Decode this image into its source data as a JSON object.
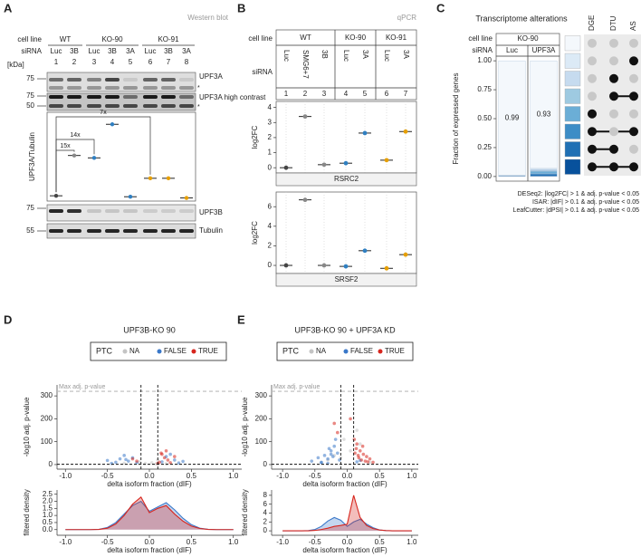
{
  "a": {
    "label": "A",
    "source": "Western blot",
    "row_labels": {
      "cell_line": "cell line",
      "sirna": "siRNA",
      "kda": "[kDa]"
    },
    "groups": [
      {
        "name": "WT",
        "lanes": [
          {
            "sirna": "Luc",
            "number": 1
          },
          {
            "sirna": "3B",
            "number": 2
          }
        ]
      },
      {
        "name": "KO-90",
        "lanes": [
          {
            "sirna": "Luc",
            "number": 3
          },
          {
            "sirna": "3B",
            "number": 4
          },
          {
            "sirna": "3A",
            "number": 5
          }
        ]
      },
      {
        "name": "KO-91",
        "lanes": [
          {
            "sirna": "Luc",
            "number": 6
          },
          {
            "sirna": "3B",
            "number": 7
          },
          {
            "sirna": "3A",
            "number": 8
          }
        ]
      }
    ],
    "blots": [
      {
        "label": "UPF3A",
        "markers": [
          75
        ],
        "note": "*"
      },
      {
        "label": "UPF3A high contrast",
        "markers": [
          75,
          50
        ],
        "note": "*"
      }
    ],
    "quant": {
      "type": "dot",
      "ylabel": "UPF3A/Tubulin",
      "values": [
        0.012,
        0.18,
        0.17,
        0.31,
        0.008,
        0.085,
        0.085,
        0.003
      ],
      "colors": [
        "#444444",
        "#888888",
        "#2f7fc1",
        "#2f7fc1",
        "#2f7fc1",
        "#e69f00",
        "#e69f00",
        "#e69f00"
      ],
      "ylim": [
        -0.01,
        0.36
      ],
      "fold_changes": [
        "15x",
        "14x",
        "7x"
      ]
    },
    "blots_lower": [
      {
        "label": "UPF3B",
        "markers": [
          75
        ]
      },
      {
        "label": "Tubulin",
        "markers": [
          55
        ]
      }
    ]
  },
  "b": {
    "label": "B",
    "source": "qPCR",
    "row_labels": {
      "cell_line": "cell line",
      "sirna": "siRNA"
    },
    "groups": [
      {
        "name": "WT",
        "lanes": [
          {
            "sirna": "Luc",
            "number": 1
          },
          {
            "sirna": "SMG6+7",
            "number": 2
          },
          {
            "sirna": "3B",
            "number": 3
          }
        ]
      },
      {
        "name": "KO-90",
        "lanes": [
          {
            "sirna": "Luc",
            "number": 4
          },
          {
            "sirna": "3A",
            "number": 5
          }
        ]
      },
      {
        "name": "KO-91",
        "lanes": [
          {
            "sirna": "Luc",
            "number": 6
          },
          {
            "sirna": "3A",
            "number": 7
          }
        ]
      }
    ],
    "ylabel": "log2FC",
    "colors": [
      "#444444",
      "#888888",
      "#888888",
      "#2f7fc1",
      "#2f7fc1",
      "#e69f00",
      "#e69f00"
    ],
    "genes": [
      {
        "type": "dot",
        "name": "RSRC2",
        "values": [
          0,
          3.4,
          0.2,
          0.3,
          2.3,
          0.5,
          2.4
        ],
        "ylim": [
          -0.35,
          4.4
        ],
        "yticks": [
          0,
          1,
          2,
          3,
          4
        ]
      },
      {
        "type": "dot",
        "name": "SRSF2",
        "values": [
          0,
          6.7,
          0,
          -0.1,
          1.5,
          -0.3,
          1.1
        ],
        "ylim": [
          -0.83,
          7.5
        ],
        "yticks": [
          0,
          2,
          4,
          6
        ]
      }
    ]
  },
  "c": {
    "type": "stacked-bar",
    "label": "C",
    "title": "Transcriptome alterations",
    "cell_line_label": "cell line",
    "cell_line": "KO-90",
    "sirna_label": "siRNA",
    "categories": [
      "Luc",
      "UPF3A"
    ],
    "ylabel": "Fraction of expressed genes",
    "ylim": [
      -0.04,
      1.04
    ],
    "yticks": [
      {
        "value": 0,
        "label": "0.00"
      },
      {
        "value": 0.25,
        "label": "0.25"
      },
      {
        "value": 0.5,
        "label": "0.50"
      },
      {
        "value": 0.75,
        "label": "0.75"
      },
      {
        "value": 1,
        "label": "1.00"
      }
    ],
    "matrix_columns": [
      "DGE",
      "DTU",
      "AS"
    ],
    "series": [
      {
        "color": "#f4f8fc",
        "values": [
          0.99,
          0.93
        ],
        "combination": [
          false,
          false,
          false
        ]
      },
      {
        "color": "#dceaf6",
        "values": [
          0.001,
          0.01
        ],
        "combination": [
          false,
          false,
          true
        ]
      },
      {
        "color": "#c6dbef",
        "values": [
          0.001,
          0.01
        ],
        "combination": [
          false,
          true,
          false
        ]
      },
      {
        "color": "#9ecae1",
        "values": [
          0.001,
          0.005
        ],
        "combination": [
          false,
          true,
          true
        ]
      },
      {
        "color": "#6baed6",
        "values": [
          0.003,
          0.02
        ],
        "combination": [
          true,
          false,
          false
        ]
      },
      {
        "color": "#3d8dc6",
        "values": [
          0.001,
          0.005
        ],
        "combination": [
          true,
          false,
          true
        ]
      },
      {
        "color": "#2070b4",
        "values": [
          0.002,
          0.015
        ],
        "combination": [
          true,
          true,
          false
        ]
      },
      {
        "color": "#08519c",
        "values": [
          0.001,
          0.005
        ],
        "combination": [
          true,
          true,
          true
        ]
      }
    ],
    "criteria": [
      "DESeq2: |log2FC| > 1 & adj. p-value < 0.05",
      "ISAR: |dIF| > 0.1 & adj. p-value < 0.05",
      "LeafCutter: |dPSI| > 0.1 & adj. p-value < 0.05"
    ]
  },
  "d": {
    "label": "D",
    "title": "UPF3B-KO 90",
    "legend_title": "PTC",
    "volcano": {
      "type": "scatter",
      "ylabel": "-log10 adj. p-value",
      "xlabel": "delta isoform fraction (dIF)",
      "xlim": [
        -1.1,
        1.1
      ],
      "xticks": [
        {
          "value": -1,
          "label": "-1.0"
        },
        -0.5,
        {
          "value": 0,
          "label": "0.0"
        },
        0.5,
        {
          "value": 1,
          "label": "1.0"
        }
      ],
      "ylim": [
        -20,
        348
      ],
      "yticks": [
        0,
        100,
        200,
        300
      ],
      "dif_cutoffs": [
        -0.1,
        0.1
      ],
      "padj_cutoff": 1.3,
      "max_line": {
        "value": 320,
        "label": "Max adj. p-value"
      },
      "series": [
        {
          "name": "NA",
          "color": "#c4c4c4",
          "x": [
            -0.05,
            0.03,
            0.08,
            -0.12,
            0.2,
            -0.3,
            0.1
          ],
          "values": [
            5,
            8,
            3,
            12,
            4,
            6,
            20
          ]
        },
        {
          "name": "FALSE",
          "color": "#3a78c9",
          "x": [
            -0.5,
            -0.4,
            -0.35,
            -0.3,
            -0.25,
            -0.2,
            -0.15,
            -0.45,
            0.15,
            0.2,
            0.3,
            0.35,
            0.4,
            -0.28,
            0.25
          ],
          "values": [
            18,
            10,
            25,
            40,
            15,
            30,
            8,
            5,
            12,
            35,
            20,
            7,
            14,
            22,
            45
          ]
        },
        {
          "name": "TRUE",
          "color": "#d7261e",
          "x": [
            0.12,
            0.15,
            0.18,
            0.2,
            0.22,
            -0.15,
            -0.2,
            0.25,
            0.3,
            0.1,
            0.14
          ],
          "values": [
            10,
            45,
            30,
            60,
            20,
            15,
            25,
            8,
            35,
            5,
            50
          ]
        }
      ]
    },
    "density": {
      "type": "area",
      "ylabel": "filtered density",
      "xlabel": "delta isoform fraction (dIF)",
      "xlim": [
        -1.1,
        1.1
      ],
      "xticks": [
        {
          "value": -1,
          "label": "-1.0"
        },
        -0.5,
        {
          "value": 0,
          "label": "0.0"
        },
        0.5,
        {
          "value": 1,
          "label": "1.0"
        }
      ],
      "ylim": [
        -0.4,
        2.8
      ],
      "yticks": [
        {
          "value": 0,
          "label": "0.0"
        },
        0.5,
        {
          "value": 1,
          "label": "1.0"
        },
        1.5,
        {
          "value": 2,
          "label": "2.0"
        },
        2.5
      ],
      "x": [
        -1,
        -0.9,
        -0.8,
        -0.7,
        -0.6,
        -0.5,
        -0.4,
        -0.3,
        -0.2,
        -0.1,
        0,
        0.1,
        0.2,
        0.3,
        0.4,
        0.5,
        0.6,
        0.7,
        0.8,
        0.9,
        1
      ],
      "series": [
        {
          "color": "#3a78c9",
          "values": [
            0,
            0,
            0,
            0,
            0.02,
            0.15,
            0.5,
            1.1,
            1.7,
            2.0,
            1.3,
            1.6,
            1.9,
            1.4,
            0.8,
            0.35,
            0.1,
            0.02,
            0,
            0,
            0
          ]
        },
        {
          "color": "#d7261e",
          "values": [
            0,
            0,
            0,
            0,
            0.01,
            0.1,
            0.4,
            1.0,
            1.8,
            2.3,
            1.2,
            1.5,
            1.7,
            1.1,
            0.6,
            0.25,
            0.08,
            0.01,
            0,
            0,
            0
          ]
        }
      ]
    }
  },
  "e": {
    "label": "E",
    "title": "UPF3B-KO 90 + UPF3A KD",
    "legend_title": "PTC",
    "volcano": {
      "type": "scatter",
      "ylabel": "-log10 adj. p-value",
      "xlabel": "delta isoform fraction (dIF)",
      "xlim": [
        -1.17,
        1.1
      ],
      "xticks": [
        {
          "value": -1,
          "label": "-1.0"
        },
        -0.5,
        {
          "value": 0,
          "label": "0.0"
        },
        0.5,
        {
          "value": 1,
          "label": "1.0"
        }
      ],
      "ylim": [
        -20,
        348
      ],
      "yticks": [
        0,
        100,
        200,
        300
      ],
      "dif_cutoffs": [
        -0.1,
        0.1
      ],
      "padj_cutoff": 1.3,
      "max_line": {
        "value": 320,
        "label": "Max adj. p-value"
      },
      "series": [
        {
          "name": "NA",
          "color": "#c4c4c4",
          "x": [
            -0.1,
            0.05,
            0.15,
            -0.3,
            0.2,
            -0.05,
            0.35,
            -0.2
          ],
          "values": [
            30,
            60,
            150,
            20,
            90,
            110,
            10,
            40
          ]
        },
        {
          "name": "FALSE",
          "color": "#3a78c9",
          "x": [
            -0.55,
            -0.45,
            -0.4,
            -0.35,
            -0.3,
            -0.25,
            -0.2,
            -0.15,
            -0.12,
            -0.3,
            -0.22,
            -0.18,
            -0.4,
            0.15,
            0.2,
            -0.28,
            -0.25
          ],
          "values": [
            15,
            30,
            10,
            40,
            25,
            60,
            80,
            50,
            20,
            5,
            35,
            110,
            8,
            12,
            18,
            70,
            45
          ]
        },
        {
          "name": "TRUE",
          "color": "#d7261e",
          "x": [
            -0.2,
            -0.15,
            0.12,
            0.15,
            0.18,
            0.2,
            0.22,
            0.25,
            0.28,
            0.3,
            0.35,
            0.4,
            0.11,
            0.14,
            0.05,
            0.17,
            0.24,
            0.32
          ],
          "values": [
            180,
            140,
            50,
            90,
            30,
            60,
            20,
            45,
            15,
            35,
            25,
            10,
            110,
            70,
            200,
            40,
            80,
            12
          ]
        }
      ]
    },
    "density": {
      "type": "area",
      "ylabel": "filtered density",
      "xlabel": "delta isoform fraction (dIF)",
      "xlim": [
        -1.17,
        1.1
      ],
      "xticks": [
        {
          "value": -1,
          "label": "-1.0"
        },
        -0.5,
        {
          "value": 0,
          "label": "0.0"
        },
        0.5,
        {
          "value": 1,
          "label": "1.0"
        }
      ],
      "ylim": [
        -1,
        9.2
      ],
      "yticks": [
        0,
        2,
        4,
        6,
        8
      ],
      "x": [
        -1,
        -0.9,
        -0.8,
        -0.7,
        -0.6,
        -0.5,
        -0.4,
        -0.3,
        -0.2,
        -0.1,
        0,
        0.1,
        0.2,
        0.3,
        0.4,
        0.5,
        0.6,
        0.7,
        0.8,
        0.9,
        1
      ],
      "series": [
        {
          "color": "#3a78c9",
          "values": [
            0,
            0,
            0,
            0,
            0.05,
            0.3,
            1.0,
            2.2,
            3.0,
            2.4,
            1.0,
            2.0,
            2.6,
            1.5,
            0.7,
            0.2,
            0.05,
            0,
            0,
            0,
            0
          ]
        },
        {
          "color": "#d7261e",
          "values": [
            0,
            0,
            0,
            0,
            0,
            0.1,
            0.3,
            0.6,
            1.0,
            1.2,
            1.5,
            8.0,
            3.0,
            1.2,
            0.5,
            0.2,
            0.05,
            0,
            0,
            0,
            0
          ]
        }
      ]
    }
  }
}
